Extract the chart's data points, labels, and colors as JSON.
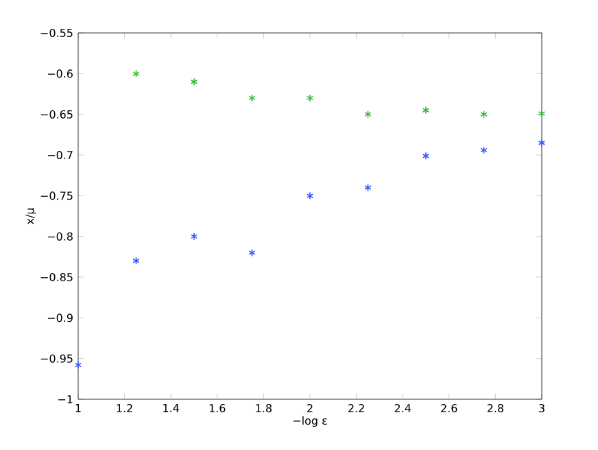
{
  "chart_data": {
    "type": "scatter",
    "xlabel": "−log ε",
    "ylabel": "x/μ",
    "marker": "cross",
    "grid": false,
    "xlim": [
      1,
      3
    ],
    "xticks": [
      1,
      1.2,
      1.4,
      1.6,
      1.8,
      2,
      2.2,
      2.4,
      2.6,
      2.8,
      3
    ],
    "ylim": [
      -1,
      -0.55
    ],
    "yticks": [
      {
        "value": -1,
        "label": "−1"
      },
      {
        "value": -0.95,
        "label": "−0.95"
      },
      {
        "value": -0.9,
        "label": "−0.9"
      },
      {
        "value": -0.85,
        "label": "−0.85"
      },
      {
        "value": -0.8,
        "label": "−0.8"
      },
      {
        "value": -0.75,
        "label": "−0.75"
      },
      {
        "value": -0.7,
        "label": "−0.7"
      },
      {
        "value": -0.65,
        "label": "−0.65"
      },
      {
        "value": -0.6,
        "label": "−0.6"
      },
      {
        "value": -0.55,
        "label": "−0.55"
      }
    ],
    "series": [
      {
        "color": "#33bb33",
        "x": [
          1.25,
          1.5,
          1.75,
          2,
          2.25,
          2.5,
          2.75,
          3
        ],
        "values": [
          -0.6,
          -0.61,
          -0.63,
          -0.63,
          -0.65,
          -0.645,
          -0.65,
          -0.649
        ]
      },
      {
        "color": "#3355ff",
        "x": [
          1,
          1.25,
          1.5,
          1.75,
          2,
          2.25,
          2.5,
          2.75,
          3
        ],
        "values": [
          -0.958,
          -0.83,
          -0.8,
          -0.82,
          -0.75,
          -0.74,
          -0.701,
          -0.694,
          -0.685
        ]
      }
    ]
  }
}
